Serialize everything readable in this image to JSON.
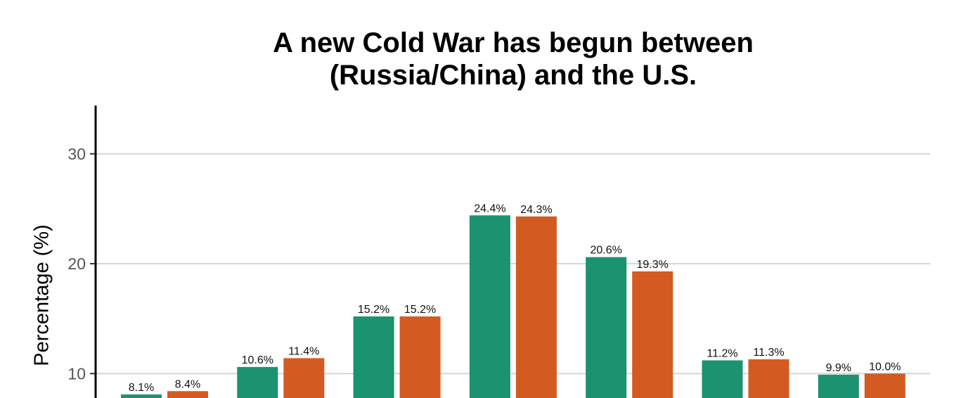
{
  "chart_data": {
    "type": "bar",
    "title_lines": [
      "A new Cold War has begun between",
      "(Russia/China) and the U.S."
    ],
    "ylabel": "Percentage (%)",
    "y_ticks": [
      10,
      20,
      30
    ],
    "grid": true,
    "colors": [
      "#1b9270",
      "#d35b22"
    ],
    "series": [
      {
        "values": [
          8.1,
          10.6,
          15.2,
          24.4,
          20.6,
          11.2,
          9.9
        ],
        "labels": [
          "8.1%",
          "10.6%",
          "15.2%",
          "24.4%",
          "20.6%",
          "11.2%",
          "9.9%"
        ]
      },
      {
        "values": [
          8.4,
          11.4,
          15.2,
          24.3,
          19.3,
          11.3,
          10.0
        ],
        "labels": [
          "8.4%",
          "11.4%",
          "15.2%",
          "24.3%",
          "19.3%",
          "11.3%",
          "10.0%"
        ]
      }
    ]
  }
}
